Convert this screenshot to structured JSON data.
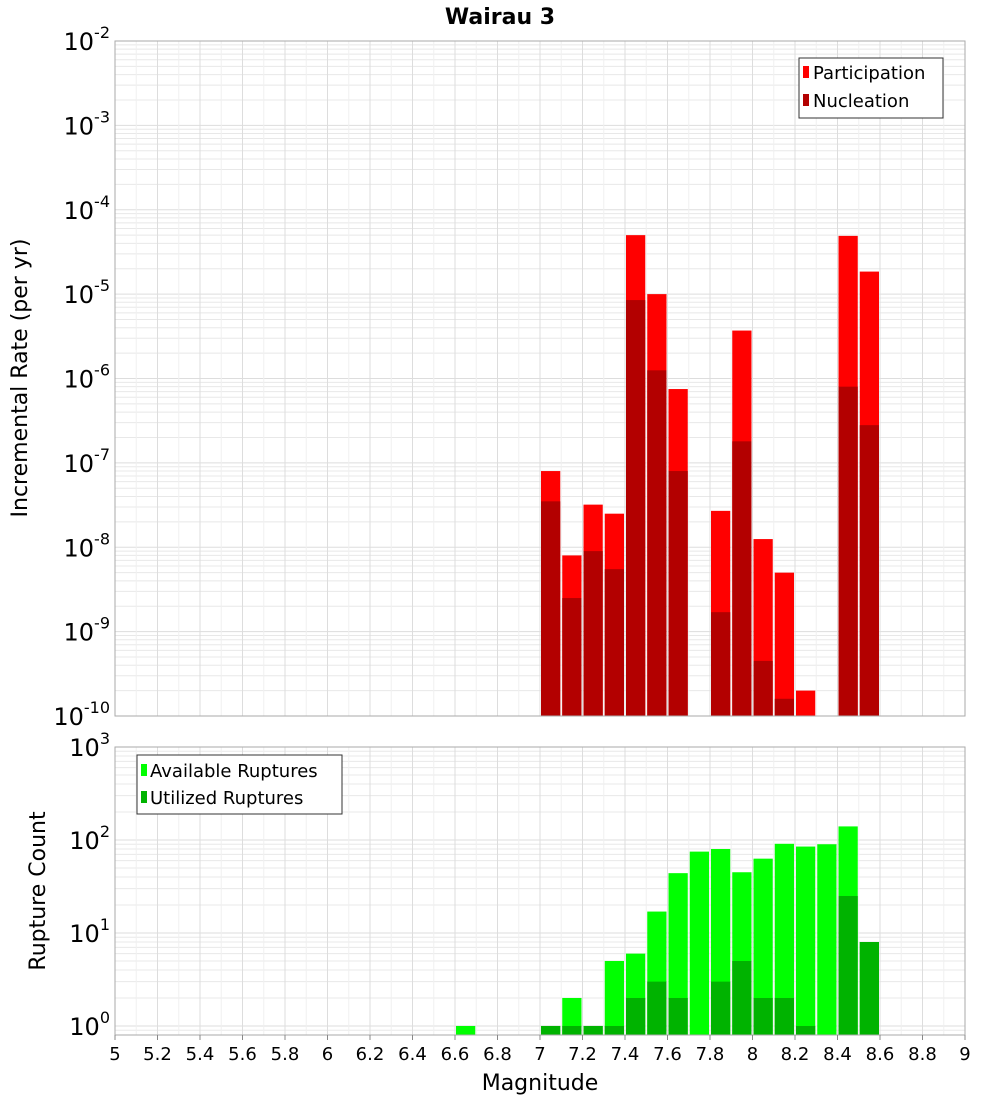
{
  "colors": {
    "participation": "#ff0000",
    "nucleation": "#b30000",
    "available": "#00ff00",
    "utilized": "#00b300",
    "grid": "#e8e8e8",
    "frame": "#aaaaaa"
  },
  "chart_data": [
    {
      "type": "bar",
      "title": "Wairau 3",
      "ylabel": "Incremental Rate (per yr)",
      "y_scale": "log",
      "ylim": [
        1e-10,
        0.01
      ],
      "y_tick_labels": [
        "10-10",
        "10-9",
        "10-8",
        "10-7",
        "10-6",
        "10-5",
        "10-4",
        "10-3",
        "10-2"
      ],
      "legend": {
        "position": "top-right",
        "entries": [
          "Participation",
          "Nucleation"
        ]
      },
      "bin_width": 0.1,
      "series": [
        {
          "name": "Participation",
          "points": [
            {
              "x": 7.05,
              "y": 8e-08
            },
            {
              "x": 7.15,
              "y": 8e-09
            },
            {
              "x": 7.25,
              "y": 3.2e-08
            },
            {
              "x": 7.35,
              "y": 2.5e-08
            },
            {
              "x": 7.45,
              "y": 5e-05
            },
            {
              "x": 7.55,
              "y": 1e-05
            },
            {
              "x": 7.65,
              "y": 7.5e-07
            },
            {
              "x": 7.85,
              "y": 2.7e-08
            },
            {
              "x": 7.95,
              "y": 3.7e-06
            },
            {
              "x": 8.05,
              "y": 1.25e-08
            },
            {
              "x": 8.15,
              "y": 5e-09
            },
            {
              "x": 8.25,
              "y": 2e-10
            },
            {
              "x": 8.45,
              "y": 4.9e-05
            },
            {
              "x": 8.55,
              "y": 1.85e-05
            }
          ]
        },
        {
          "name": "Nucleation",
          "points": [
            {
              "x": 7.05,
              "y": 3.5e-08
            },
            {
              "x": 7.15,
              "y": 2.5e-09
            },
            {
              "x": 7.25,
              "y": 9e-09
            },
            {
              "x": 7.35,
              "y": 5.5e-09
            },
            {
              "x": 7.45,
              "y": 8.5e-06
            },
            {
              "x": 7.55,
              "y": 1.25e-06
            },
            {
              "x": 7.65,
              "y": 8e-08
            },
            {
              "x": 7.85,
              "y": 1.7e-09
            },
            {
              "x": 7.95,
              "y": 1.8e-07
            },
            {
              "x": 8.05,
              "y": 4.5e-10
            },
            {
              "x": 8.15,
              "y": 1.6e-10
            },
            {
              "x": 8.25,
              "y": 1e-10
            },
            {
              "x": 8.45,
              "y": 8e-07
            },
            {
              "x": 8.55,
              "y": 2.8e-07
            }
          ]
        }
      ]
    },
    {
      "type": "bar",
      "xlabel": "Magnitude",
      "ylabel": "Rupture Count",
      "y_scale": "log",
      "ylim": [
        0.8,
        1000
      ],
      "y_tick_labels": [
        "100",
        "101",
        "102",
        "103"
      ],
      "xlim": [
        5,
        9
      ],
      "x_tick_labels": [
        "5",
        "5.2",
        "5.4",
        "5.6",
        "5.8",
        "6",
        "6.2",
        "6.4",
        "6.6",
        "6.8",
        "7",
        "7.2",
        "7.4",
        "7.6",
        "7.8",
        "8",
        "8.2",
        "8.4",
        "8.6",
        "8.8",
        "9"
      ],
      "legend": {
        "position": "top-left",
        "entries": [
          "Available Ruptures",
          "Utilized Ruptures"
        ]
      },
      "bin_width": 0.1,
      "series": [
        {
          "name": "Available Ruptures",
          "points": [
            {
              "x": 6.65,
              "y": 1
            },
            {
              "x": 7.05,
              "y": 1
            },
            {
              "x": 7.15,
              "y": 2
            },
            {
              "x": 7.25,
              "y": 1
            },
            {
              "x": 7.35,
              "y": 5
            },
            {
              "x": 7.45,
              "y": 6
            },
            {
              "x": 7.55,
              "y": 17
            },
            {
              "x": 7.65,
              "y": 44
            },
            {
              "x": 7.75,
              "y": 75
            },
            {
              "x": 7.85,
              "y": 80
            },
            {
              "x": 7.95,
              "y": 45
            },
            {
              "x": 8.05,
              "y": 63
            },
            {
              "x": 8.15,
              "y": 91
            },
            {
              "x": 8.25,
              "y": 85
            },
            {
              "x": 8.35,
              "y": 90
            },
            {
              "x": 8.45,
              "y": 140
            },
            {
              "x": 8.55,
              "y": 8
            }
          ]
        },
        {
          "name": "Utilized Ruptures",
          "points": [
            {
              "x": 7.05,
              "y": 1
            },
            {
              "x": 7.15,
              "y": 1
            },
            {
              "x": 7.25,
              "y": 1
            },
            {
              "x": 7.35,
              "y": 1
            },
            {
              "x": 7.45,
              "y": 2
            },
            {
              "x": 7.55,
              "y": 3
            },
            {
              "x": 7.65,
              "y": 2
            },
            {
              "x": 7.85,
              "y": 3
            },
            {
              "x": 7.95,
              "y": 5
            },
            {
              "x": 8.05,
              "y": 2
            },
            {
              "x": 8.15,
              "y": 2
            },
            {
              "x": 8.25,
              "y": 1
            },
            {
              "x": 8.45,
              "y": 25
            },
            {
              "x": 8.55,
              "y": 8
            }
          ]
        }
      ]
    }
  ]
}
